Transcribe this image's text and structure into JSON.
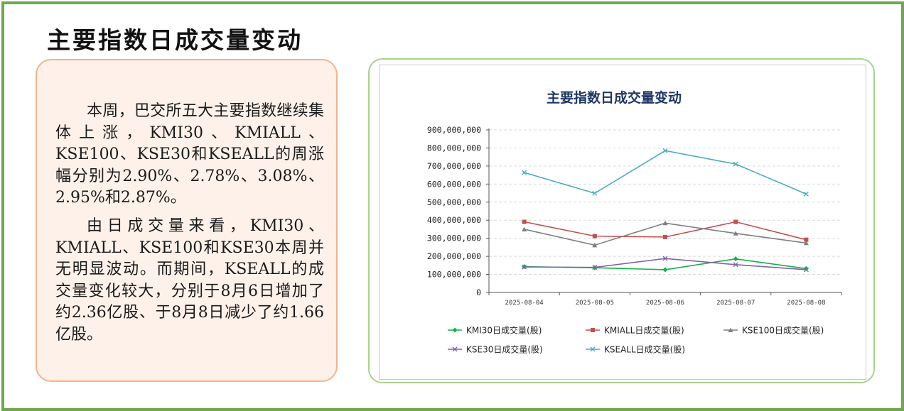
{
  "page": {
    "title": "主要指数日成交量变动",
    "paragraphs": [
      "本周，巴交所五大主要指数继续集体上涨，KMI30、KMIALL、KSE100、KSE30和KSEALL的周涨幅分别为2.90%、2.78%、3.08%、2.95%和2.87%。",
      "由日成交量来看，KMI30、KMIALL、KSE100和KSE30本周并无明显波动。而期间，KSEALL的成交量变化较大，分别于8月6日增加了约2.36亿股、于8月8日减少了约1.66亿股。"
    ]
  },
  "chart_data": {
    "type": "line",
    "title": "主要指数日成交量变动",
    "categories": [
      "2025-08-04",
      "2025-08-05",
      "2025-08-06",
      "2025-08-07",
      "2025-08-08"
    ],
    "ylim": [
      0,
      900000000
    ],
    "yticks": [
      "0",
      "100,000,000",
      "200,000,000",
      "300,000,000",
      "400,000,000",
      "500,000,000",
      "600,000,000",
      "700,000,000",
      "800,000,000",
      "900,000,000"
    ],
    "grid": true,
    "legend_position": "bottom",
    "series": [
      {
        "name": "KMI30日成交量(股)",
        "color": "#16b04a",
        "marker": "diamond",
        "values": [
          143000000,
          137000000,
          126000000,
          186000000,
          132000000
        ]
      },
      {
        "name": "KMIALL日成交量(股)",
        "color": "#c0504d",
        "marker": "square",
        "values": [
          391000000,
          312000000,
          307000000,
          391000000,
          292000000
        ]
      },
      {
        "name": "KSE100日成交量(股)",
        "color": "#7f7f7f",
        "marker": "triangle",
        "values": [
          350000000,
          262000000,
          384000000,
          327000000,
          274000000
        ]
      },
      {
        "name": "KSE30日成交量(股)",
        "color": "#8064a2",
        "marker": "x",
        "values": [
          141000000,
          139000000,
          188000000,
          154000000,
          126000000
        ]
      },
      {
        "name": "KSEALL日成交量(股)",
        "color": "#4bacc6",
        "marker": "x",
        "values": [
          664000000,
          549000000,
          785000000,
          711000000,
          545000000
        ]
      }
    ]
  }
}
